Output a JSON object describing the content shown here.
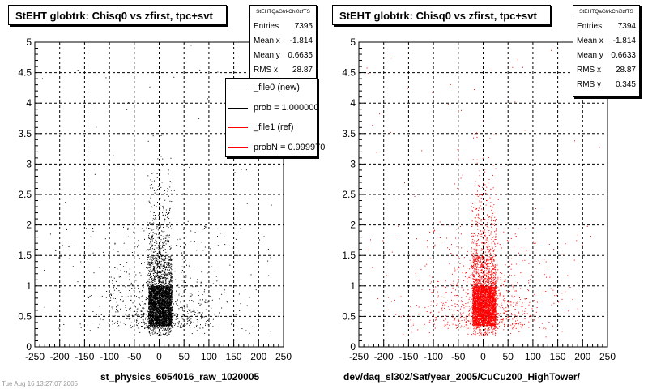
{
  "chart_data": [
    {
      "type": "scatter",
      "title": "StEHT globtrk: Chisq0 vs zfirst, tpc+svt",
      "xlabel": "st_physics_6054016_raw_1020005",
      "ylabel": "",
      "xlim": [
        -250,
        250
      ],
      "ylim": [
        0,
        5
      ],
      "xticks": [
        -250,
        -200,
        -150,
        -100,
        -50,
        0,
        50,
        100,
        150,
        200,
        250
      ],
      "yticks": [
        0,
        0.5,
        1,
        1.5,
        2,
        2.5,
        3,
        3.5,
        4,
        4.5,
        5
      ],
      "grid": true,
      "marker_color": "#000000",
      "stats": {
        "name": "StEHTQaGtrkChi0zfTS",
        "rows": [
          {
            "label": "Entries",
            "value": "7395"
          },
          {
            "label": "Mean x",
            "value": "-1.814"
          },
          {
            "label": "Mean y",
            "value": "0.6635"
          },
          {
            "label": "RMS x",
            "value": "28.87"
          }
        ]
      },
      "legend": {
        "placement": "top-right",
        "entries": [
          {
            "label": "_file0 (new)",
            "color": "#000000"
          },
          {
            "label": "prob = 1.000000",
            "color": "#000000"
          },
          {
            "label": "_file1 (ref)",
            "color": "#ff0000"
          },
          {
            "label": "probN = 0.999970",
            "color": "#ff0000"
          }
        ]
      }
    },
    {
      "type": "scatter",
      "title": "StEHT globtrk: Chisq0 vs zfirst, tpc+svt",
      "xlabel": "dev/daq_sl302/Sat/year_2005/CuCu200_HighTower/",
      "ylabel": "",
      "xlim": [
        -250,
        250
      ],
      "ylim": [
        0,
        5
      ],
      "xticks": [
        -250,
        -200,
        -150,
        -100,
        -50,
        0,
        50,
        100,
        150,
        200,
        250
      ],
      "yticks": [
        0,
        0.5,
        1,
        1.5,
        2,
        2.5,
        3,
        3.5,
        4,
        4.5,
        5
      ],
      "grid": true,
      "marker_color": "#ff0000",
      "stats": {
        "name": "StEHTQaGtrkChi0zfTS",
        "rows": [
          {
            "label": "Entries",
            "value": "7394"
          },
          {
            "label": "Mean x",
            "value": "-1.814"
          },
          {
            "label": "Mean y",
            "value": "0.6633"
          },
          {
            "label": "RMS x",
            "value": "28.87"
          },
          {
            "label": "RMS y",
            "value": "0.345"
          }
        ]
      }
    }
  ],
  "footer": "Tue Aug 16 13:27:07 2005"
}
